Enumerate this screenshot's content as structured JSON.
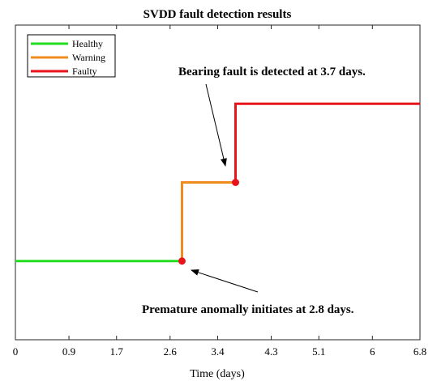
{
  "chart_data": {
    "type": "line",
    "title": "SVDD fault detection results",
    "xlabel": "Time (days)",
    "ylabel": "",
    "xlim": [
      0,
      6.8
    ],
    "ylim": [
      0,
      4
    ],
    "xticks": [
      0,
      0.9,
      1.7,
      2.6,
      3.4,
      4.3,
      5.1,
      6,
      6.8
    ],
    "xtick_labels": [
      "0",
      "0.9",
      "1.7",
      "2.6",
      "3.4",
      "4.3",
      "5.1",
      "6",
      "6.8"
    ],
    "grid": false,
    "legend_position": "top-left",
    "series": [
      {
        "name": "Healthy",
        "color": "#22dd22",
        "x": [
          0,
          2.8
        ],
        "y": [
          1,
          1
        ]
      },
      {
        "name": "Warning",
        "color": "#f08c1e",
        "x": [
          2.8,
          2.8,
          3.7,
          3.7
        ],
        "y": [
          1,
          2,
          2,
          3
        ]
      },
      {
        "name": "Faulty",
        "color": "#e8141c",
        "x": [
          3.7,
          3.7,
          6.8
        ],
        "y": [
          2,
          3,
          3
        ]
      }
    ],
    "markers": [
      {
        "x": 2.8,
        "y": 1,
        "color": "#e8141c"
      },
      {
        "x": 3.7,
        "y": 2,
        "color": "#e8141c"
      }
    ],
    "annotations": [
      {
        "text": "Bearing fault is detected at 3.7 days.",
        "points_to": {
          "x": 3.7,
          "y": 2
        }
      },
      {
        "text": "Premature anomally initiates at 2.8 days.",
        "points_to": {
          "x": 2.8,
          "y": 1
        }
      }
    ]
  }
}
